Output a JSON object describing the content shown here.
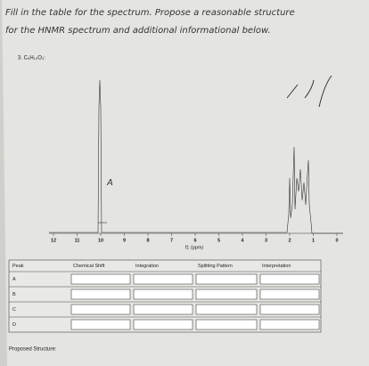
{
  "instructions": [
    "Fill in the table for the spectrum. Propose a reasonable structure",
    "for the HNMR spectrum and additional informational below."
  ],
  "question": "3.  C₆H₁₀O₂:",
  "spectrum": {
    "xticks": [
      "12",
      "11",
      "10",
      "9",
      "8",
      "7",
      "6",
      "5",
      "4",
      "3",
      "2",
      "1",
      "0"
    ],
    "xlabel": "f1 (ppm)",
    "annotation": "A"
  },
  "table": {
    "headers": [
      "Peak",
      "Chemical Shift",
      "Integration",
      "Splitting Pattern",
      "Interpretation"
    ],
    "rows": [
      "A",
      "B",
      "C",
      "D"
    ]
  },
  "footer": "Proposed Structure:"
}
